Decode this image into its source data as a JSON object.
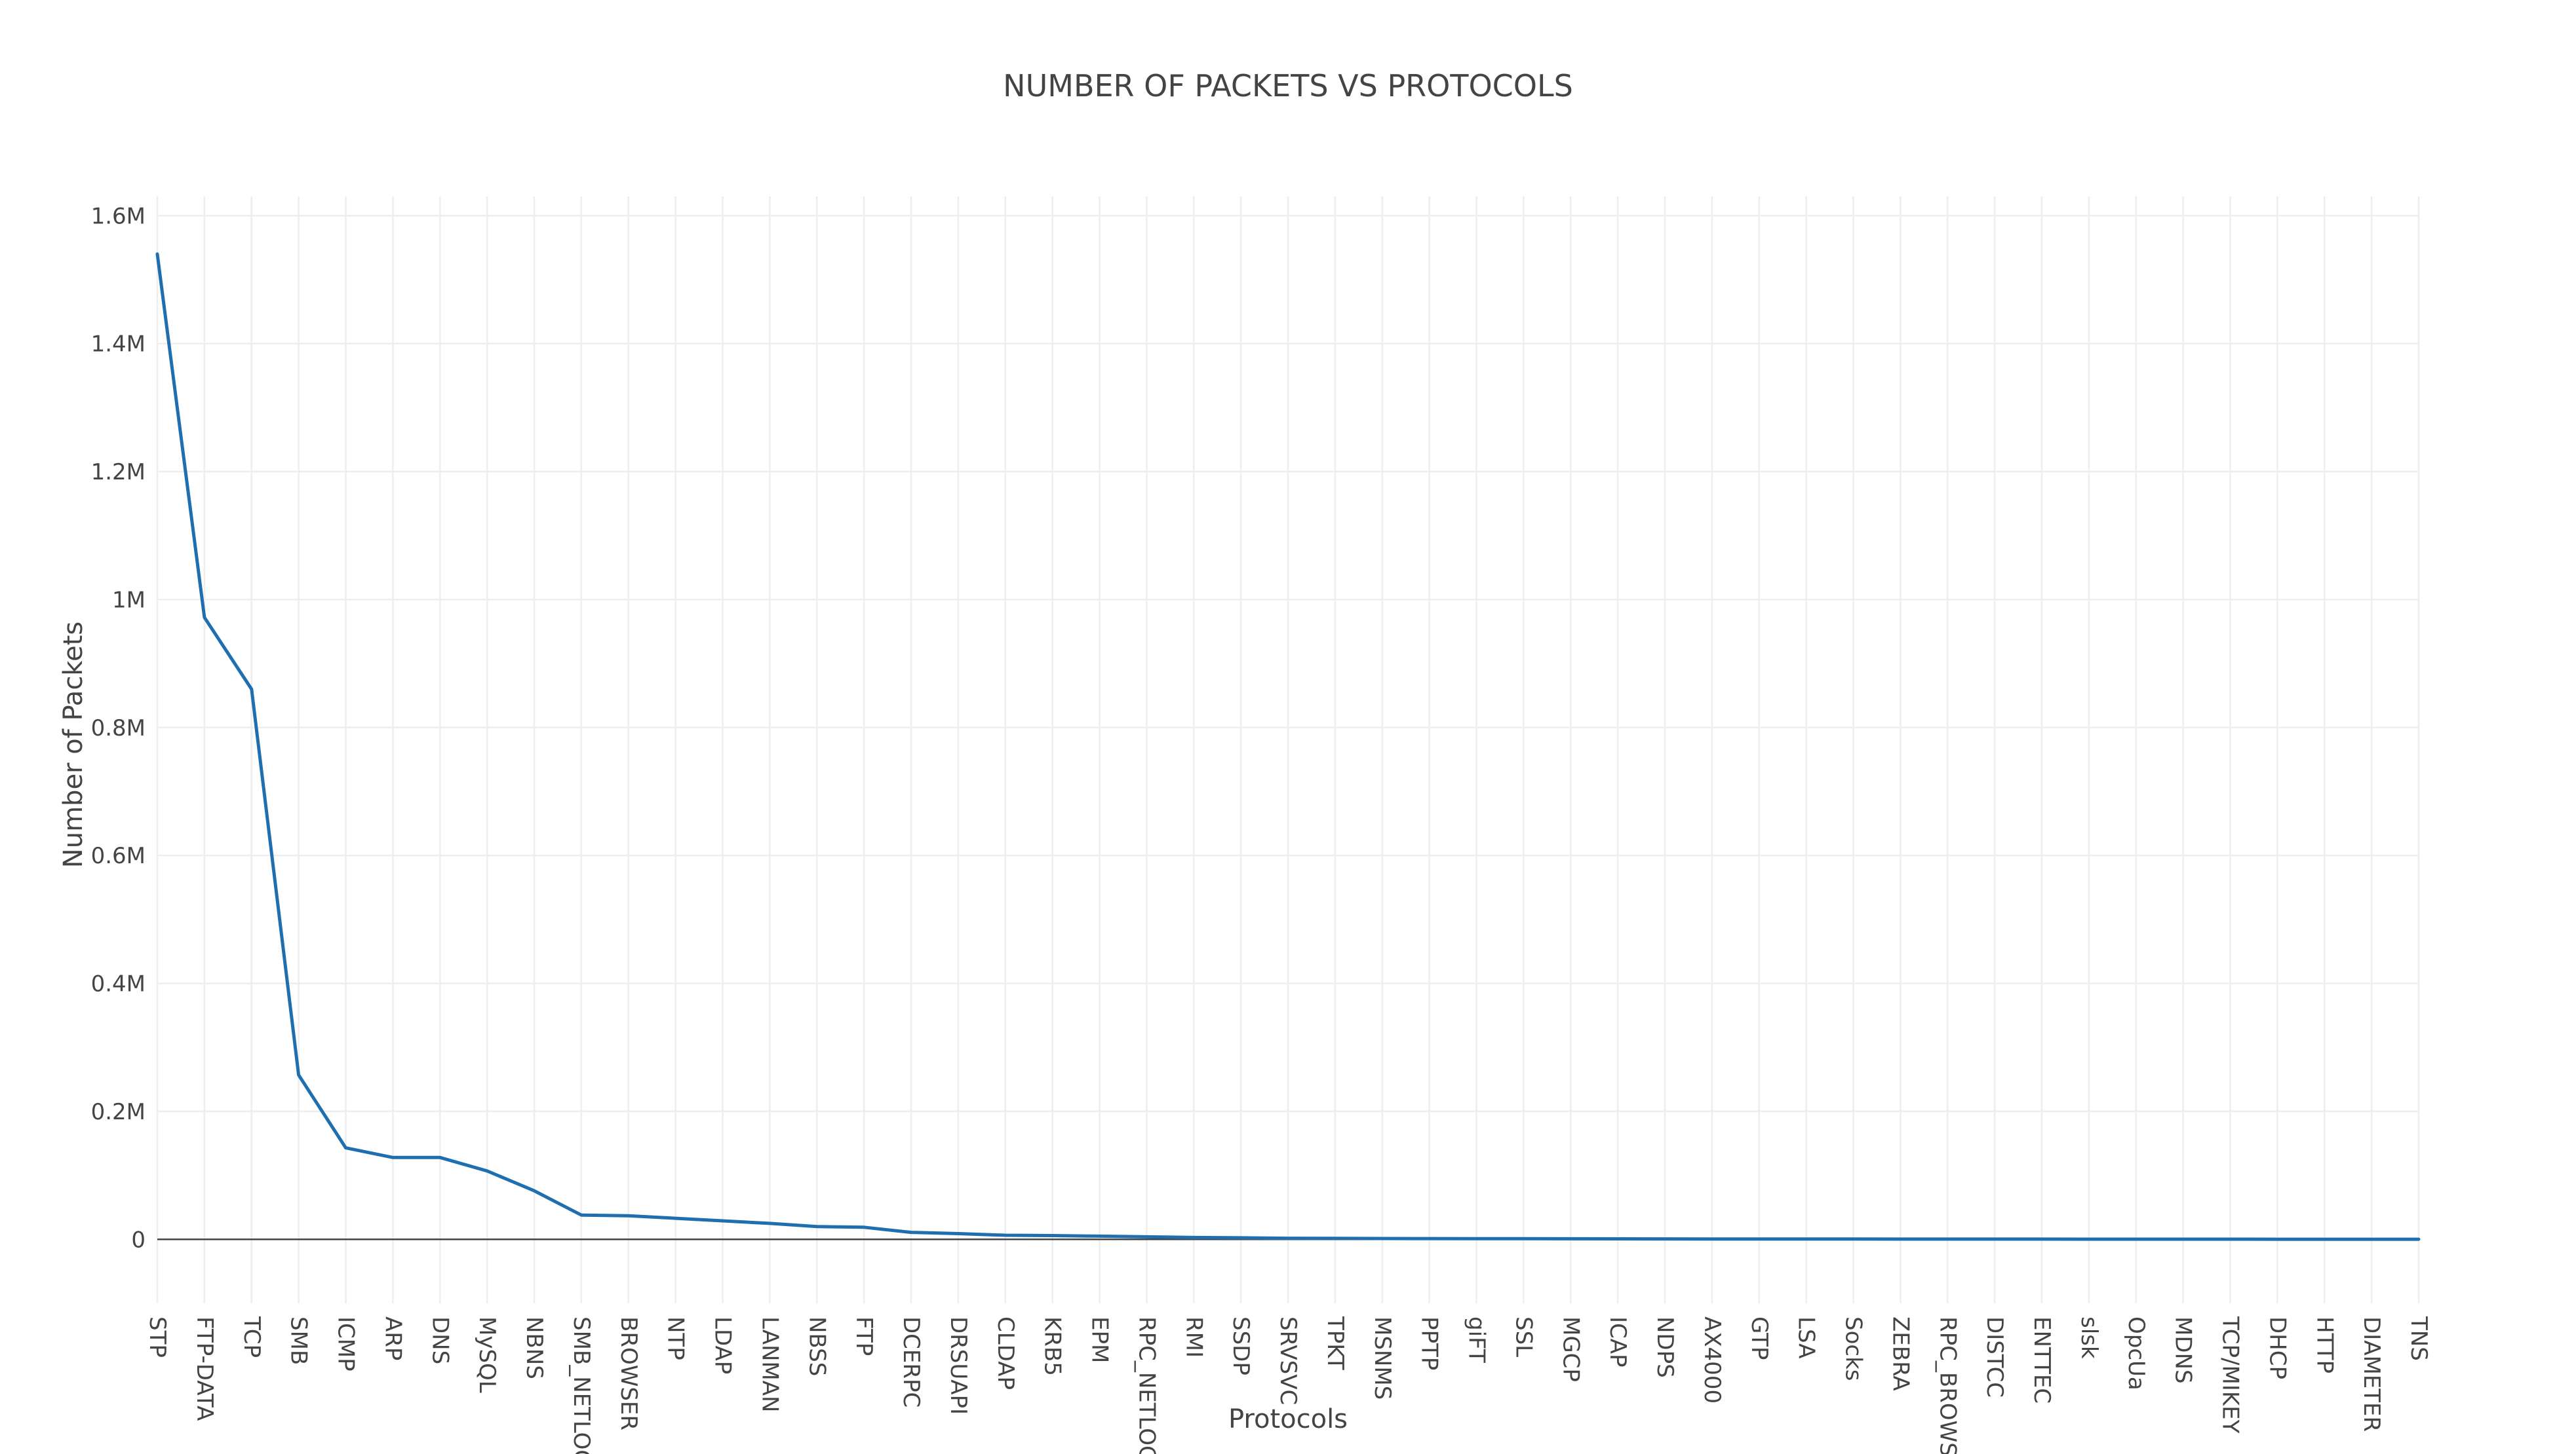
{
  "chart_data": {
    "type": "line",
    "title": "NUMBER OF PACKETS VS PROTOCOLS",
    "xlabel": "Protocols",
    "ylabel": "Number of Packets",
    "ylim": [
      -100000,
      1630000
    ],
    "yticks": [
      {
        "value": 0,
        "label": "0"
      },
      {
        "value": 200000,
        "label": "0.2M"
      },
      {
        "value": 400000,
        "label": "0.4M"
      },
      {
        "value": 600000,
        "label": "0.6M"
      },
      {
        "value": 800000,
        "label": "0.8M"
      },
      {
        "value": 1000000,
        "label": "1M"
      },
      {
        "value": 1200000,
        "label": "1.2M"
      },
      {
        "value": 1400000,
        "label": "1.4M"
      },
      {
        "value": 1600000,
        "label": "1.6M"
      }
    ],
    "grid": true,
    "categories": [
      "STP",
      "FTP-DATA",
      "TCP",
      "SMB",
      "ICMP",
      "ARP",
      "DNS",
      "MySQL",
      "NBNS",
      "SMB_NETLOGON",
      "BROWSER",
      "NTP",
      "LDAP",
      "LANMAN",
      "NBSS",
      "FTP",
      "DCERPC",
      "DRSUAPI",
      "CLDAP",
      "KRB5",
      "EPM",
      "RPC_NETLOGON",
      "RMI",
      "SSDP",
      "SRVSVC",
      "TPKT",
      "MSNMS",
      "PPTP",
      "giFT",
      "SSL",
      "MGCP",
      "ICAP",
      "NDPS",
      "AX4000",
      "GTP",
      "LSA",
      "Socks",
      "ZEBRA",
      "RPC_BROWSER",
      "DISTCC",
      "ENTTEC",
      "slsk",
      "OpcUa",
      "MDNS",
      "TCP/MIKEY",
      "DHCP",
      "HTTP",
      "DIAMETER",
      "TNS"
    ],
    "series": [
      {
        "color": "#1f6fb0",
        "values": [
          1540000,
          972000,
          860000,
          257000,
          143000,
          128000,
          128000,
          107000,
          76000,
          38000,
          37000,
          33000,
          29000,
          25000,
          20000,
          19000,
          11000,
          9000,
          6500,
          6000,
          5000,
          4000,
          3000,
          2500,
          1800,
          1500,
          1300,
          1200,
          1100,
          1000,
          900,
          800,
          700,
          650,
          600,
          550,
          500,
          450,
          420,
          400,
          380,
          350,
          320,
          300,
          280,
          260,
          240,
          220,
          200
        ]
      }
    ]
  }
}
